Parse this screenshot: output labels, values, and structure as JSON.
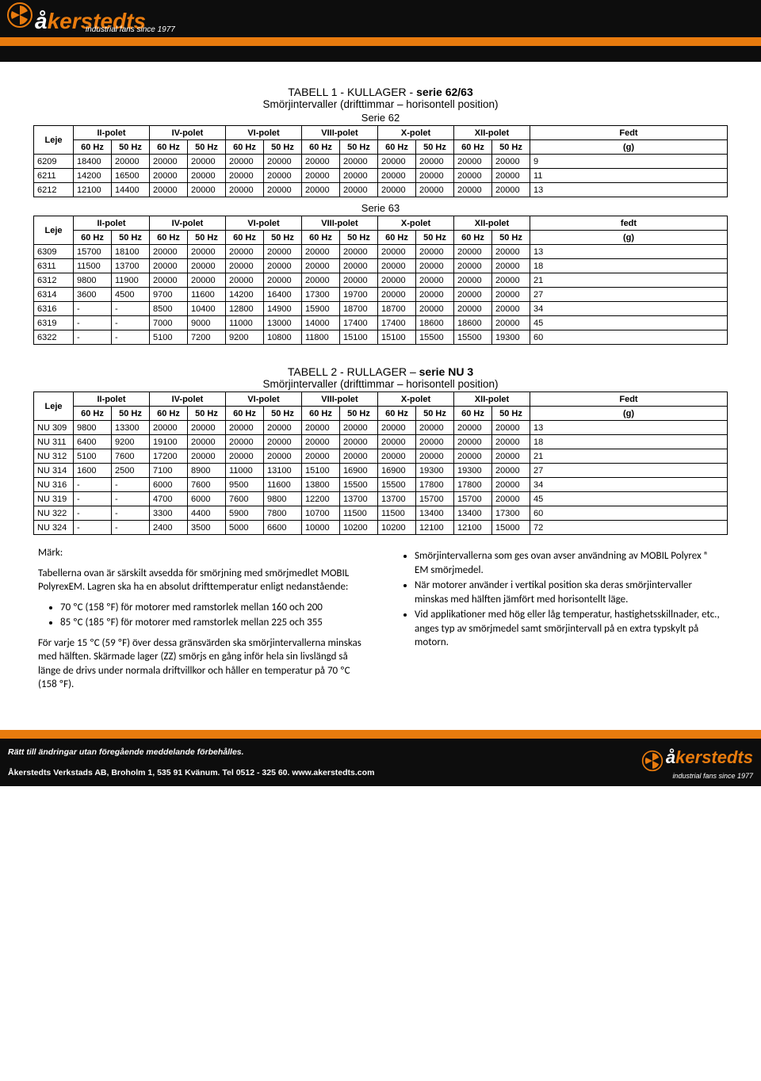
{
  "brand": {
    "name_a": "å",
    "name_ker": "kerstedts",
    "tagline": "industrial fans since 1977",
    "orange": "#e87b0e",
    "black": "#0d0d0d"
  },
  "footer": {
    "line1": "Rätt till ändringar utan föregående meddelande förbehålles.",
    "line2": "Åkerstedts Verkstads AB, Broholm 1, 535 91 Kvänum. Tel 0512 - 325 60. www.akerstedts.com"
  },
  "table1": {
    "title_prefix": "TABELL 1 - KULLAGER - ",
    "title_suffix": "serie 62/63",
    "subtitle": "Smörjintervaller (drifttimmar – horisontell position)",
    "series_a": "Serie 62",
    "series_b": "Serie 63"
  },
  "table2": {
    "title_prefix": "TABELL 2 - RULLAGER – ",
    "title_suffix": "serie NU 3",
    "subtitle": "Smörjintervaller (drifttimmar – horisontell position)"
  },
  "cols": {
    "leje": "Leje",
    "polets": [
      "II-polet",
      "IV-polet",
      "VI-polet",
      "VIII-polet",
      "X-polet",
      "XII-polet"
    ],
    "fedt": "Fedt",
    "fedt_b": "fedt",
    "hz60": "60 Hz",
    "hz50": "50 Hz",
    "g": "(g)"
  },
  "serie62": [
    [
      "6209",
      "18400",
      "20000",
      "20000",
      "20000",
      "20000",
      "20000",
      "20000",
      "20000",
      "20000",
      "20000",
      "20000",
      "20000",
      "9"
    ],
    [
      "6211",
      "14200",
      "16500",
      "20000",
      "20000",
      "20000",
      "20000",
      "20000",
      "20000",
      "20000",
      "20000",
      "20000",
      "20000",
      "11"
    ],
    [
      "6212",
      "12100",
      "14400",
      "20000",
      "20000",
      "20000",
      "20000",
      "20000",
      "20000",
      "20000",
      "20000",
      "20000",
      "20000",
      "13"
    ]
  ],
  "serie63": [
    [
      "6309",
      "15700",
      "18100",
      "20000",
      "20000",
      "20000",
      "20000",
      "20000",
      "20000",
      "20000",
      "20000",
      "20000",
      "20000",
      "13"
    ],
    [
      "6311",
      "11500",
      "13700",
      "20000",
      "20000",
      "20000",
      "20000",
      "20000",
      "20000",
      "20000",
      "20000",
      "20000",
      "20000",
      "18"
    ],
    [
      "6312",
      "9800",
      "11900",
      "20000",
      "20000",
      "20000",
      "20000",
      "20000",
      "20000",
      "20000",
      "20000",
      "20000",
      "20000",
      "21"
    ],
    [
      "6314",
      "3600",
      "4500",
      "9700",
      "11600",
      "14200",
      "16400",
      "17300",
      "19700",
      "20000",
      "20000",
      "20000",
      "20000",
      "27"
    ],
    [
      "6316",
      "-",
      "-",
      "8500",
      "10400",
      "12800",
      "14900",
      "15900",
      "18700",
      "18700",
      "20000",
      "20000",
      "20000",
      "34"
    ],
    [
      "6319",
      "-",
      "-",
      "7000",
      "9000",
      "11000",
      "13000",
      "14000",
      "17400",
      "17400",
      "18600",
      "18600",
      "20000",
      "45"
    ],
    [
      "6322",
      "-",
      "-",
      "5100",
      "7200",
      "9200",
      "10800",
      "11800",
      "15100",
      "15100",
      "15500",
      "15500",
      "19300",
      "60"
    ]
  ],
  "nu3": [
    [
      "NU 309",
      "9800",
      "13300",
      "20000",
      "20000",
      "20000",
      "20000",
      "20000",
      "20000",
      "20000",
      "20000",
      "20000",
      "20000",
      "13"
    ],
    [
      "NU 311",
      "6400",
      "9200",
      "19100",
      "20000",
      "20000",
      "20000",
      "20000",
      "20000",
      "20000",
      "20000",
      "20000",
      "20000",
      "18"
    ],
    [
      "NU 312",
      "5100",
      "7600",
      "17200",
      "20000",
      "20000",
      "20000",
      "20000",
      "20000",
      "20000",
      "20000",
      "20000",
      "20000",
      "21"
    ],
    [
      "NU 314",
      "1600",
      "2500",
      "7100",
      "8900",
      "11000",
      "13100",
      "15100",
      "16900",
      "16900",
      "19300",
      "19300",
      "20000",
      "27"
    ],
    [
      "NU 316",
      "-",
      "-",
      "6000",
      "7600",
      "9500",
      "11600",
      "13800",
      "15500",
      "15500",
      "17800",
      "17800",
      "20000",
      "34"
    ],
    [
      "NU 319",
      "-",
      "-",
      "4700",
      "6000",
      "7600",
      "9800",
      "12200",
      "13700",
      "13700",
      "15700",
      "15700",
      "20000",
      "45"
    ],
    [
      "NU 322",
      "-",
      "-",
      "3300",
      "4400",
      "5900",
      "7800",
      "10700",
      "11500",
      "11500",
      "13400",
      "13400",
      "17300",
      "60"
    ],
    [
      "NU 324",
      "-",
      "-",
      "2400",
      "3500",
      "5000",
      "6600",
      "10000",
      "10200",
      "10200",
      "12100",
      "12100",
      "15000",
      "72"
    ]
  ],
  "notes": {
    "mark": "Märk:",
    "p1": "Tabellerna ovan är särskilt avsedda för smörjning med smörjmedlet MOBIL PolyrexEM. Lagren ska ha en absolut drifttemperatur enligt nedanstående:",
    "b1": "70 ºC (158 ºF) för motorer med ramstorlek mellan 160 och 200",
    "b2": "85 ºC (185 ºF) för motorer med ramstorlek mellan 225 och 355",
    "p2": "För varje 15 ºC (59 ºF) över dessa gränsvärden ska smörjintervallerna minskas med hälften. Skärmade lager (ZZ) smörjs en gång inför hela sin livslängd så länge de drivs under normala driftvillkor och håller en temperatur på 70 ºC (158 ºF).",
    "r1": "Smörjintervallerna som ges ovan avser användning av MOBIL Polyrex ® EM smörjmedel.",
    "r2": "När motorer använder i vertikal position ska deras smörjintervaller minskas med hälften jämfört med horisontellt läge.",
    "r3": "Vid applikationer med hög eller låg temperatur, hastighetsskillnader, etc., anges typ av smörjmedel samt smörjintervall på en extra typskylt på motorn."
  }
}
